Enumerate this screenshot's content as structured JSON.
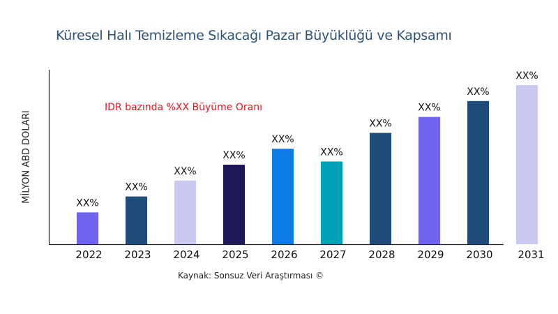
{
  "chart_data": {
    "type": "bar",
    "title": "Küresel Halı Temizleme Sıkacağı Pazar Büyüklüğü ve Kapsamı",
    "xlabel": "",
    "ylabel": "MİLYON ABD DOLARI",
    "annotation": "IDR bazında %XX Büyüme Oranı",
    "source": "Kaynak: Sonsuz Veri Araştırması ©",
    "categories": [
      "2022",
      "2023",
      "2024",
      "2025",
      "2026",
      "2027",
      "2028",
      "2029",
      "2030",
      "2031"
    ],
    "values": [
      20,
      30,
      40,
      50,
      60,
      52,
      70,
      80,
      90,
      100
    ],
    "data_labels": [
      "XX%",
      "XX%",
      "XX%",
      "XX%",
      "XX%",
      "XX%",
      "XX%",
      "XX%",
      "XX%",
      "XX%"
    ],
    "colors": [
      "#7063f0",
      "#1f4b7a",
      "#c9c9ef",
      "#1e1858",
      "#0f7be6",
      "#00a0b9",
      "#1f4b7a",
      "#7063f0",
      "#1f4b7a",
      "#c9c9ef"
    ],
    "ylim": [
      0,
      110
    ],
    "grid": false,
    "y_ticks_shown": false
  }
}
